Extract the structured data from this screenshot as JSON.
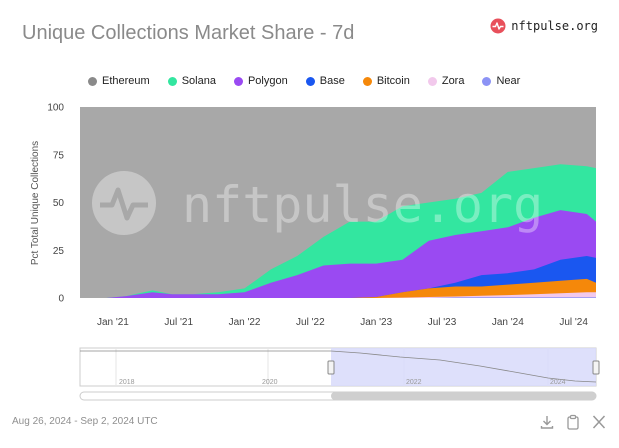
{
  "page": {
    "title": "Unique Collections Market Share - 7d"
  },
  "brand": {
    "name": "nftpulse.org",
    "watermark": "nftpulse.org"
  },
  "footer": {
    "date_range": "Aug 26, 2024 - Sep 2, 2024 UTC"
  },
  "colors": {
    "Ethereum": "#a8a8a8",
    "Solana": "#33e6a0",
    "Polygon": "#9a4af2",
    "Base": "#1a57f0",
    "Bitcoin": "#f5880a",
    "Zora": "#f2c9ec",
    "Near": "#8c93f5",
    "brand": "#e8505b"
  },
  "chart_data": {
    "type": "area",
    "stacking": "cumulative",
    "title": "Unique Collections Market Share - 7d",
    "ylabel": "Pct Total Unique Collections",
    "xlabel": "",
    "ylim": [
      0,
      100
    ],
    "y_ticks": [
      "0",
      "25",
      "50",
      "75",
      "100"
    ],
    "x_tick_labels": [
      "Jan '21",
      "Jul '21",
      "Jan '22",
      "Jul '22",
      "Jan '23",
      "Jul '23",
      "Jan '24",
      "Jul '24"
    ],
    "x": [
      2020.95,
      2021.1,
      2021.3,
      2021.45,
      2021.6,
      2021.8,
      2022.0,
      2022.2,
      2022.4,
      2022.6,
      2022.8,
      2023.0,
      2023.2,
      2023.4,
      2023.6,
      2023.8,
      2024.0,
      2024.2,
      2024.4,
      2024.6,
      2024.67
    ],
    "series_cumulative": [
      {
        "name": "Near",
        "values": [
          0,
          0,
          0,
          0,
          0,
          0,
          0,
          0,
          0,
          0,
          0,
          0,
          0,
          0,
          0.3,
          0.4,
          0.4,
          0.4,
          0.4,
          0.4,
          0.4
        ]
      },
      {
        "name": "Zora",
        "values": [
          0,
          0,
          0,
          0,
          0,
          0,
          0,
          0,
          0,
          0,
          0,
          0,
          0.2,
          0.5,
          0.8,
          1.2,
          1.5,
          2,
          2.5,
          3,
          3
        ]
      },
      {
        "name": "Bitcoin",
        "values": [
          0,
          0,
          0,
          0,
          0,
          0,
          0,
          0,
          0,
          0,
          0,
          0.5,
          3,
          5,
          6,
          6,
          7,
          8,
          9,
          10,
          8
        ]
      },
      {
        "name": "Base",
        "values": [
          0,
          0,
          0,
          0,
          0,
          0,
          0,
          0,
          0,
          0,
          0,
          0.5,
          3,
          5,
          8,
          12,
          13,
          15,
          20,
          22,
          21
        ]
      },
      {
        "name": "Polygon",
        "values": [
          0,
          1,
          3,
          2,
          2,
          2,
          3,
          8,
          12,
          17,
          18,
          18,
          20,
          30,
          33,
          35,
          37,
          42,
          46,
          44,
          40
        ]
      },
      {
        "name": "Solana",
        "values": [
          0,
          1,
          4,
          2,
          2,
          3,
          5,
          15,
          22,
          32,
          40,
          40,
          48,
          50,
          52,
          55,
          66,
          68,
          70,
          69,
          68
        ]
      },
      {
        "name": "Ethereum",
        "values": [
          100,
          100,
          100,
          100,
          100,
          100,
          100,
          100,
          100,
          100,
          100,
          100,
          100,
          100,
          100,
          100,
          100,
          100,
          100,
          100,
          100
        ]
      }
    ],
    "legend": [
      "Ethereum",
      "Solana",
      "Polygon",
      "Base",
      "Bitcoin",
      "Zora",
      "Near"
    ],
    "legend_position": "top",
    "navigator": {
      "labels": [
        "2018",
        "2020",
        "2022",
        "2024"
      ]
    }
  }
}
